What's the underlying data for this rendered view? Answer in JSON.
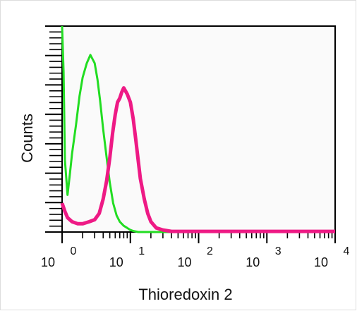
{
  "chart_data": {
    "type": "area",
    "xlabel": "Thioredoxin 2",
    "ylabel": "Counts",
    "xscale": "log",
    "xlim": [
      1,
      10000
    ],
    "ylim": [
      0,
      100
    ],
    "grid": false,
    "x_ticks": [
      {
        "base": "10",
        "exp": "0",
        "value": 1
      },
      {
        "base": "10",
        "exp": "1",
        "value": 10
      },
      {
        "base": "10",
        "exp": "2",
        "value": 100
      },
      {
        "base": "10",
        "exp": "3",
        "value": 1000
      },
      {
        "base": "10",
        "exp": "4",
        "value": 10000
      }
    ],
    "series": [
      {
        "color": "#22dd22",
        "x": [
          1.0,
          1.05,
          1.1,
          1.2,
          1.3,
          1.4,
          1.6,
          1.8,
          2.0,
          2.3,
          2.6,
          3.0,
          3.3,
          3.6,
          4.0,
          4.5,
          5.0,
          5.6,
          6.3,
          7.0,
          8.0,
          9.0,
          10.0,
          11.0,
          13.0,
          15.0,
          20.0,
          30.0,
          100.0,
          10000.0
        ],
        "y": [
          100,
          78,
          35,
          18,
          28,
          38,
          52,
          66,
          75,
          82,
          86,
          82,
          74,
          64,
          50,
          36,
          24,
          14,
          8,
          5,
          3,
          2,
          1,
          0.5,
          0,
          0,
          0,
          0,
          0,
          0
        ]
      },
      {
        "color": "#ee1a85",
        "x": [
          1.0,
          1.1,
          1.2,
          1.4,
          1.7,
          2.0,
          2.5,
          3.0,
          3.5,
          4.0,
          4.5,
          5.0,
          5.5,
          6.0,
          6.5,
          7.0,
          7.5,
          8.0,
          9.0,
          10.0,
          11.0,
          12.0,
          13.0,
          14.0,
          16.0,
          18.0,
          20.0,
          24.0,
          30.0,
          40.0,
          10000.0
        ],
        "y": [
          14,
          10,
          7,
          5,
          4,
          4,
          5,
          6,
          9,
          16,
          25,
          36,
          48,
          57,
          63,
          65,
          68,
          70,
          67,
          63,
          55,
          45,
          35,
          26,
          16,
          9,
          5,
          2,
          1,
          0.3,
          0.3
        ]
      }
    ]
  }
}
